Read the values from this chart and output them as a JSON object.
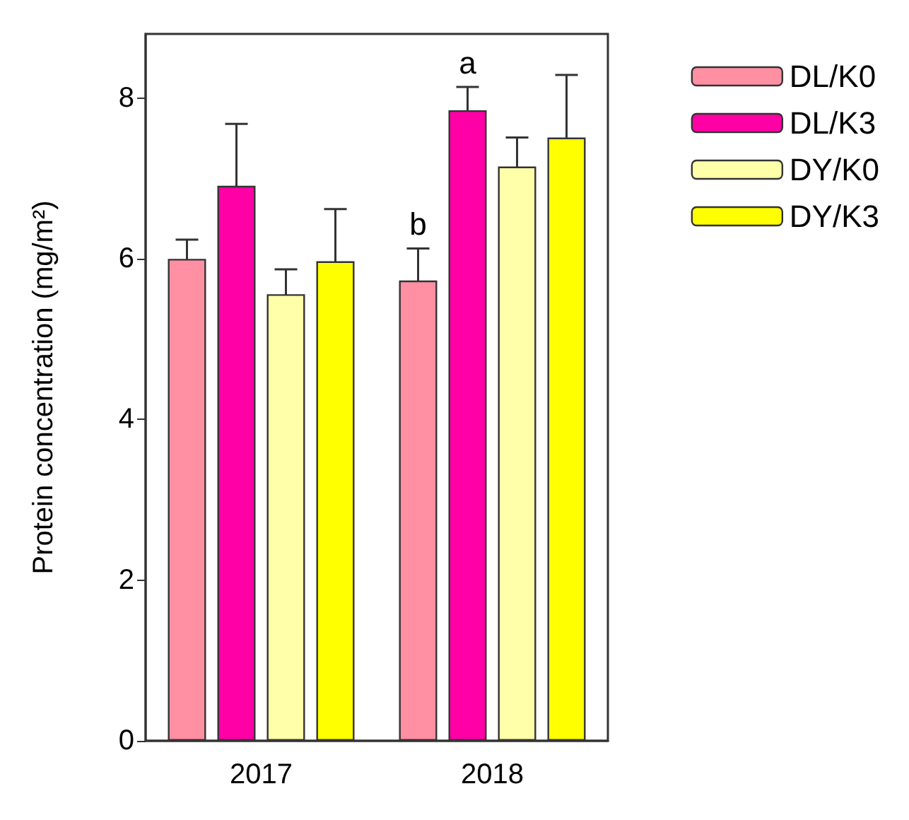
{
  "chart_data": {
    "type": "bar",
    "ylabel": "Protein concentration (mg/m²)",
    "categories": [
      "2017",
      "2018"
    ],
    "series": [
      {
        "name": "DL/K0",
        "color": "#ff8fa3",
        "values": [
          6.0,
          5.73
        ],
        "errors": [
          0.24,
          0.4
        ]
      },
      {
        "name": "DL/K3",
        "color": "#ff00a6",
        "values": [
          6.91,
          7.85
        ],
        "errors": [
          0.77,
          0.29
        ]
      },
      {
        "name": "DY/K0",
        "color": "#ffffaa",
        "values": [
          5.56,
          7.15
        ],
        "errors": [
          0.31,
          0.36
        ]
      },
      {
        "name": "DY/K3",
        "color": "#ffff00",
        "values": [
          5.97,
          7.51
        ],
        "errors": [
          0.65,
          0.78
        ]
      }
    ],
    "ylim": [
      0,
      8.8
    ],
    "yticks": [
      0,
      2,
      4,
      6,
      8
    ],
    "grid": false,
    "legend": "top right",
    "annotations": [
      {
        "text": "b",
        "x": "2018",
        "y": 5.73
      },
      {
        "text": "a",
        "x": "2018",
        "y": 7.85
      }
    ]
  }
}
